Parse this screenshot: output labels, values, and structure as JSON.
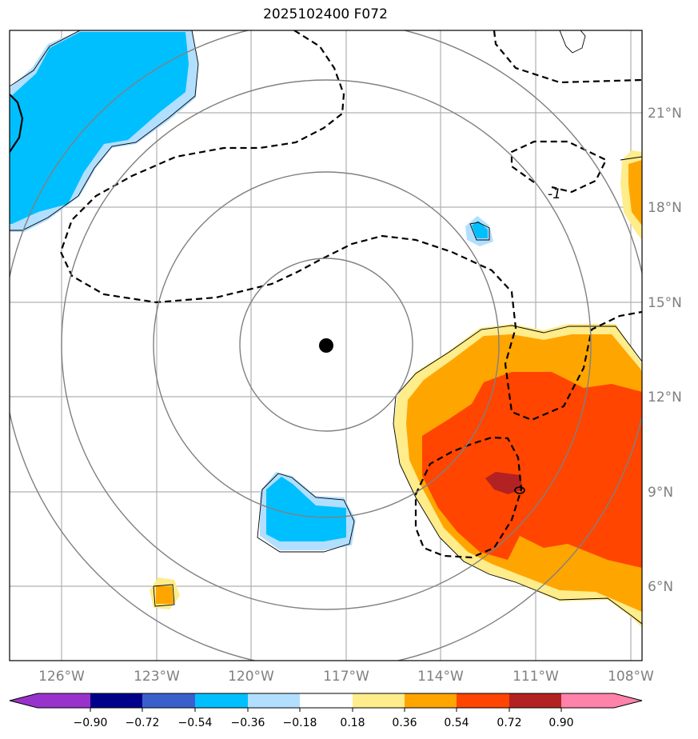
{
  "title": "2025102400 F072",
  "map": {
    "lon_ticks": [
      "126°W",
      "123°W",
      "120°W",
      "117°W",
      "114°W",
      "111°W",
      "108°W"
    ],
    "lat_ticks": [
      "21°N",
      "18°N",
      "15°N",
      "12°N",
      "9°N",
      "6°N"
    ],
    "contour_label": "-1",
    "center_marker": "storm-center-dot"
  },
  "colorbar": {
    "labels": [
      "−0.90",
      "−0.72",
      "−0.54",
      "−0.36",
      "−0.18",
      "0.18",
      "0.36",
      "0.54",
      "0.72",
      "0.90"
    ],
    "colors": {
      "under": "#9932CC",
      "levels": [
        "#00008B",
        "#3A5FCD",
        "#00BFFF",
        "#B2DFFF",
        "#FFFFFF",
        "#FFEC8B",
        "#FFA500",
        "#FF4500",
        "#B22222"
      ],
      "over": "#FF82AB"
    }
  },
  "colors": {
    "grid": "#b0b0b0",
    "rings": "#808080",
    "labels": "#7f7f7f"
  }
}
